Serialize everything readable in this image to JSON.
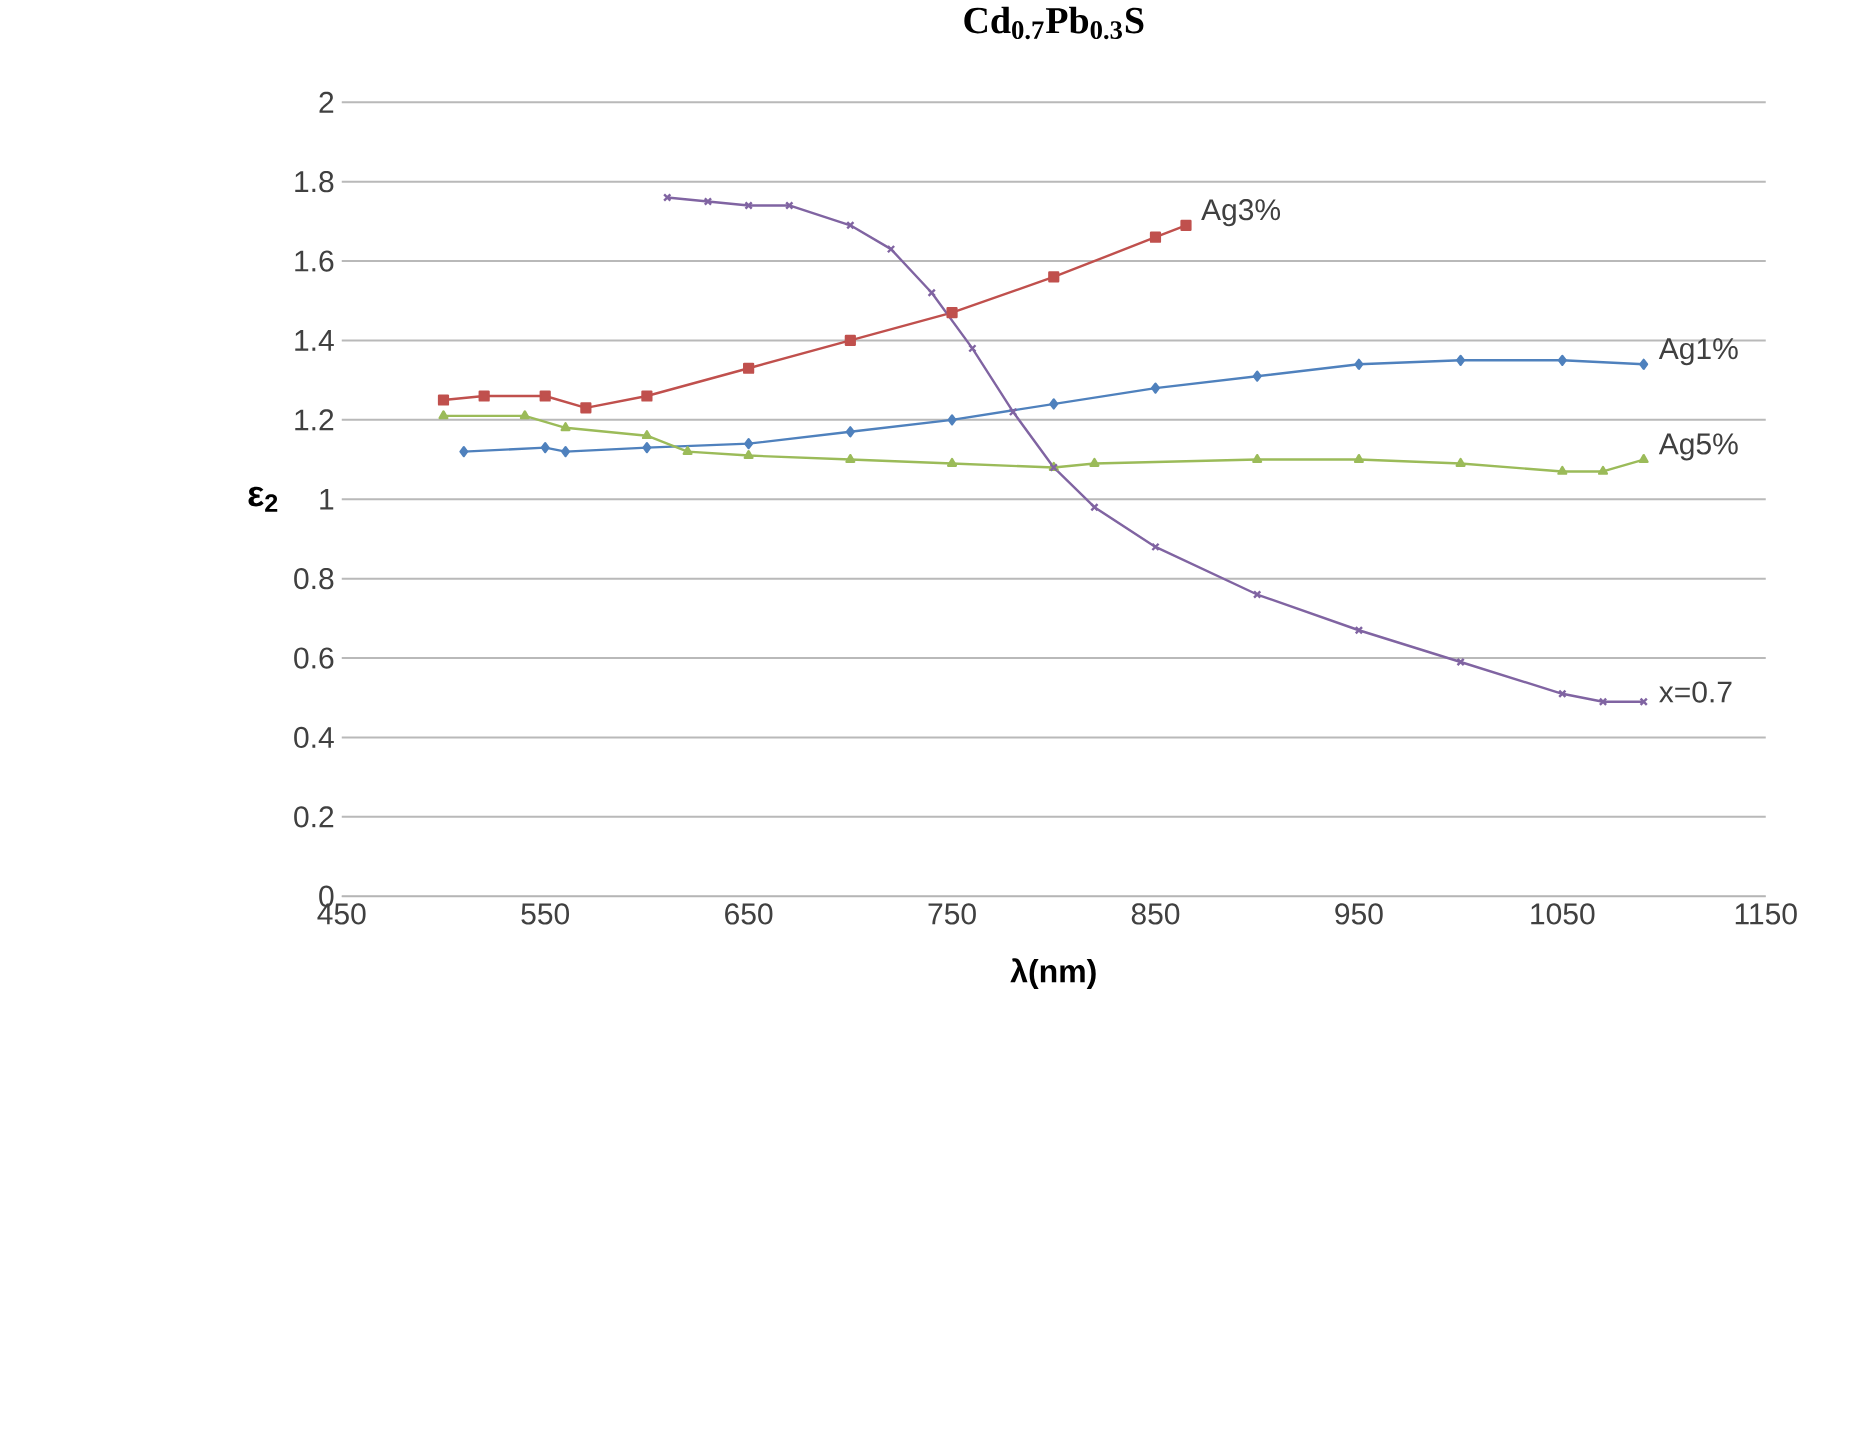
{
  "chart_data": {
    "type": "line",
    "title": "Cd$_{0.7}$Pb$_{0.3}$S",
    "xlabel": "λ(nm)",
    "ylabel": "ε$_{2}$",
    "xlim": [
      450,
      1150
    ],
    "xticks": [
      450,
      550,
      650,
      750,
      850,
      950,
      1050,
      1150
    ],
    "ylim": [
      0,
      2
    ],
    "yticks": [
      0,
      0.2,
      0.4,
      0.6,
      0.8,
      1,
      1.2,
      1.4,
      1.6,
      1.8,
      2
    ],
    "grid": "y",
    "legend": false,
    "line_style": "solid",
    "series": [
      {
        "name": "Ag3%",
        "color": "#c0504d",
        "marker": "square",
        "x": [
          500,
          520,
          550,
          570,
          600,
          650,
          700,
          750,
          800,
          850,
          865
        ],
        "values": [
          1.25,
          1.26,
          1.26,
          1.23,
          1.26,
          1.33,
          1.4,
          1.47,
          1.56,
          1.66,
          1.69
        ]
      },
      {
        "name": "Ag1%",
        "color": "#4f81bd",
        "marker": "diamond",
        "x": [
          510,
          550,
          560,
          600,
          650,
          700,
          750,
          800,
          850,
          900,
          950,
          1000,
          1050,
          1090
        ],
        "values": [
          1.12,
          1.13,
          1.12,
          1.13,
          1.14,
          1.17,
          1.2,
          1.24,
          1.28,
          1.31,
          1.34,
          1.35,
          1.35,
          1.34
        ]
      },
      {
        "name": "Ag5%",
        "color": "#9bbb59",
        "marker": "triangle",
        "x": [
          500,
          540,
          560,
          600,
          620,
          650,
          700,
          750,
          800,
          820,
          900,
          950,
          1000,
          1050,
          1070,
          1090
        ],
        "values": [
          1.21,
          1.21,
          1.18,
          1.16,
          1.12,
          1.11,
          1.1,
          1.09,
          1.08,
          1.09,
          1.1,
          1.1,
          1.09,
          1.07,
          1.07,
          1.1
        ]
      },
      {
        "name": "x=0.7",
        "color": "#8064a2",
        "marker": "cross",
        "x": [
          610,
          630,
          650,
          670,
          700,
          720,
          740,
          760,
          780,
          800,
          820,
          850,
          900,
          950,
          1000,
          1050,
          1070,
          1090
        ],
        "values": [
          1.76,
          1.75,
          1.74,
          1.74,
          1.69,
          1.63,
          1.52,
          1.38,
          1.22,
          1.08,
          0.98,
          0.88,
          0.76,
          0.67,
          0.59,
          0.51,
          0.49,
          0.49
        ]
      }
    ]
  }
}
